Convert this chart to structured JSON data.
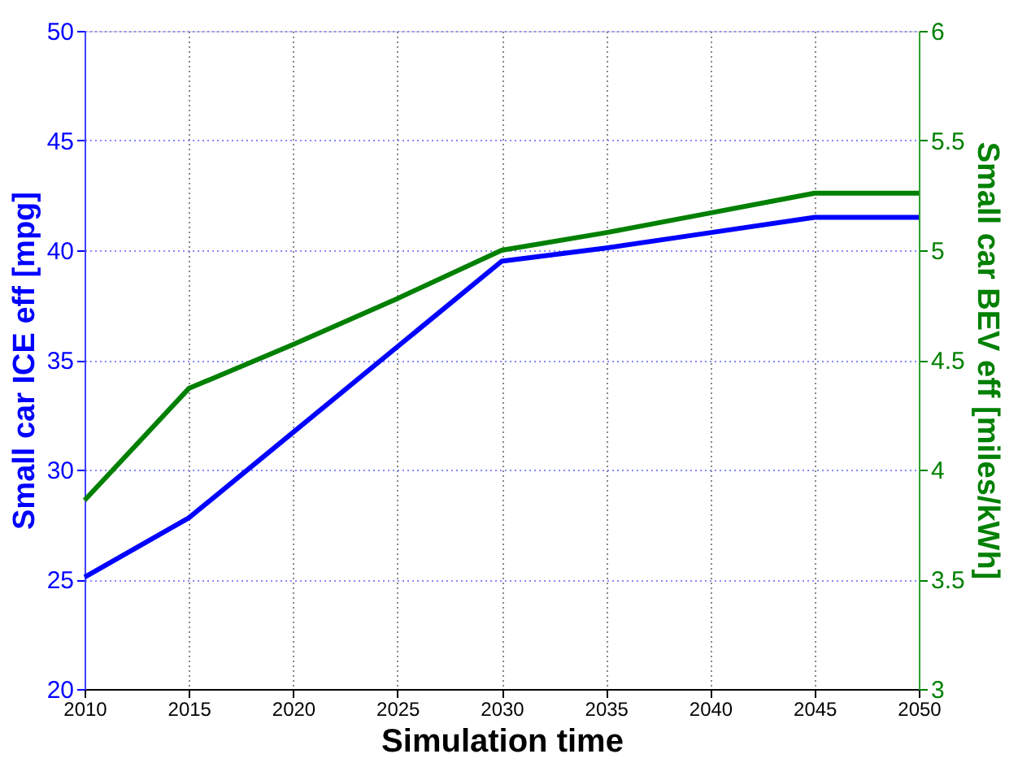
{
  "chart_data": {
    "type": "line",
    "xlabel": "Simulation time",
    "ylabel": "Small car ICE eff [mpg]",
    "y2label": "Small car BEV eff [miles/kWh]",
    "x": [
      2010,
      2015,
      2020,
      2025,
      2030,
      2035,
      2040,
      2045,
      2050
    ],
    "series": [
      {
        "color": "#0000ff",
        "values": [
          25.1,
          27.8,
          31.7,
          35.6,
          39.5,
          40.1,
          40.8,
          41.5,
          41.5
        ]
      },
      {
        "color": "#008000",
        "axis": "y2",
        "values": [
          3.86,
          4.37,
          4.57,
          4.78,
          5.0,
          5.08,
          5.17,
          5.26,
          5.26
        ]
      }
    ],
    "xlim": [
      2010,
      2050
    ],
    "xticks": [
      2010,
      2015,
      2020,
      2025,
      2030,
      2035,
      2040,
      2045,
      2050
    ],
    "ylim": [
      20,
      50
    ],
    "yticks": [
      20,
      25,
      30,
      35,
      40,
      45,
      50
    ],
    "y2lim": [
      3,
      6
    ],
    "y2ticks": [
      3,
      3.5,
      4,
      4.5,
      5,
      5.5,
      6
    ],
    "grid": true,
    "marker": "none",
    "line_style": "solid"
  }
}
